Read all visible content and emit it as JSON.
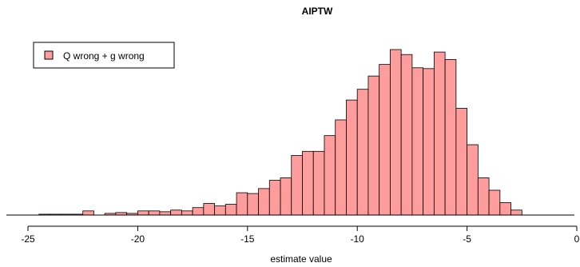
{
  "chart_data": {
    "type": "bar",
    "title": "AIPTW",
    "xlabel": "estimate value",
    "ylabel": "",
    "xlim": [
      -25,
      0
    ],
    "xticks": [
      -25,
      -20,
      -15,
      -10,
      -5,
      0
    ],
    "bin_width": 0.5,
    "bar_color": "#ff9c9c",
    "legend": {
      "label": "Q wrong + g wrong",
      "position": "top-left"
    },
    "series": [
      {
        "name": "Q wrong + g wrong",
        "bins": [
          [
            -24.5,
            1
          ],
          [
            -24,
            1
          ],
          [
            -23.5,
            1
          ],
          [
            -23,
            1
          ],
          [
            -22.5,
            5
          ],
          [
            -22,
            0
          ],
          [
            -21.5,
            2
          ],
          [
            -21,
            3
          ],
          [
            -20.5,
            2
          ],
          [
            -20,
            5
          ],
          [
            -19.5,
            5
          ],
          [
            -19,
            4
          ],
          [
            -18.5,
            6
          ],
          [
            -18,
            5
          ],
          [
            -17.5,
            9
          ],
          [
            -17,
            14
          ],
          [
            -16.5,
            11
          ],
          [
            -16,
            13
          ],
          [
            -15.5,
            27
          ],
          [
            -15,
            26
          ],
          [
            -14.5,
            32
          ],
          [
            -14,
            42
          ],
          [
            -13.5,
            45
          ],
          [
            -13,
            72
          ],
          [
            -12.5,
            77
          ],
          [
            -12,
            77
          ],
          [
            -11.5,
            96
          ],
          [
            -11,
            115
          ],
          [
            -10.5,
            139
          ],
          [
            -10,
            152
          ],
          [
            -9.5,
            168
          ],
          [
            -9,
            182
          ],
          [
            -8.5,
            200
          ],
          [
            -8,
            194
          ],
          [
            -7.5,
            178
          ],
          [
            -7,
            177
          ],
          [
            -6.5,
            197
          ],
          [
            -6,
            188
          ],
          [
            -5.5,
            129
          ],
          [
            -5,
            85
          ],
          [
            -4.5,
            45
          ],
          [
            -4,
            30
          ],
          [
            -3.5,
            15
          ],
          [
            -3,
            6
          ]
        ]
      }
    ]
  }
}
